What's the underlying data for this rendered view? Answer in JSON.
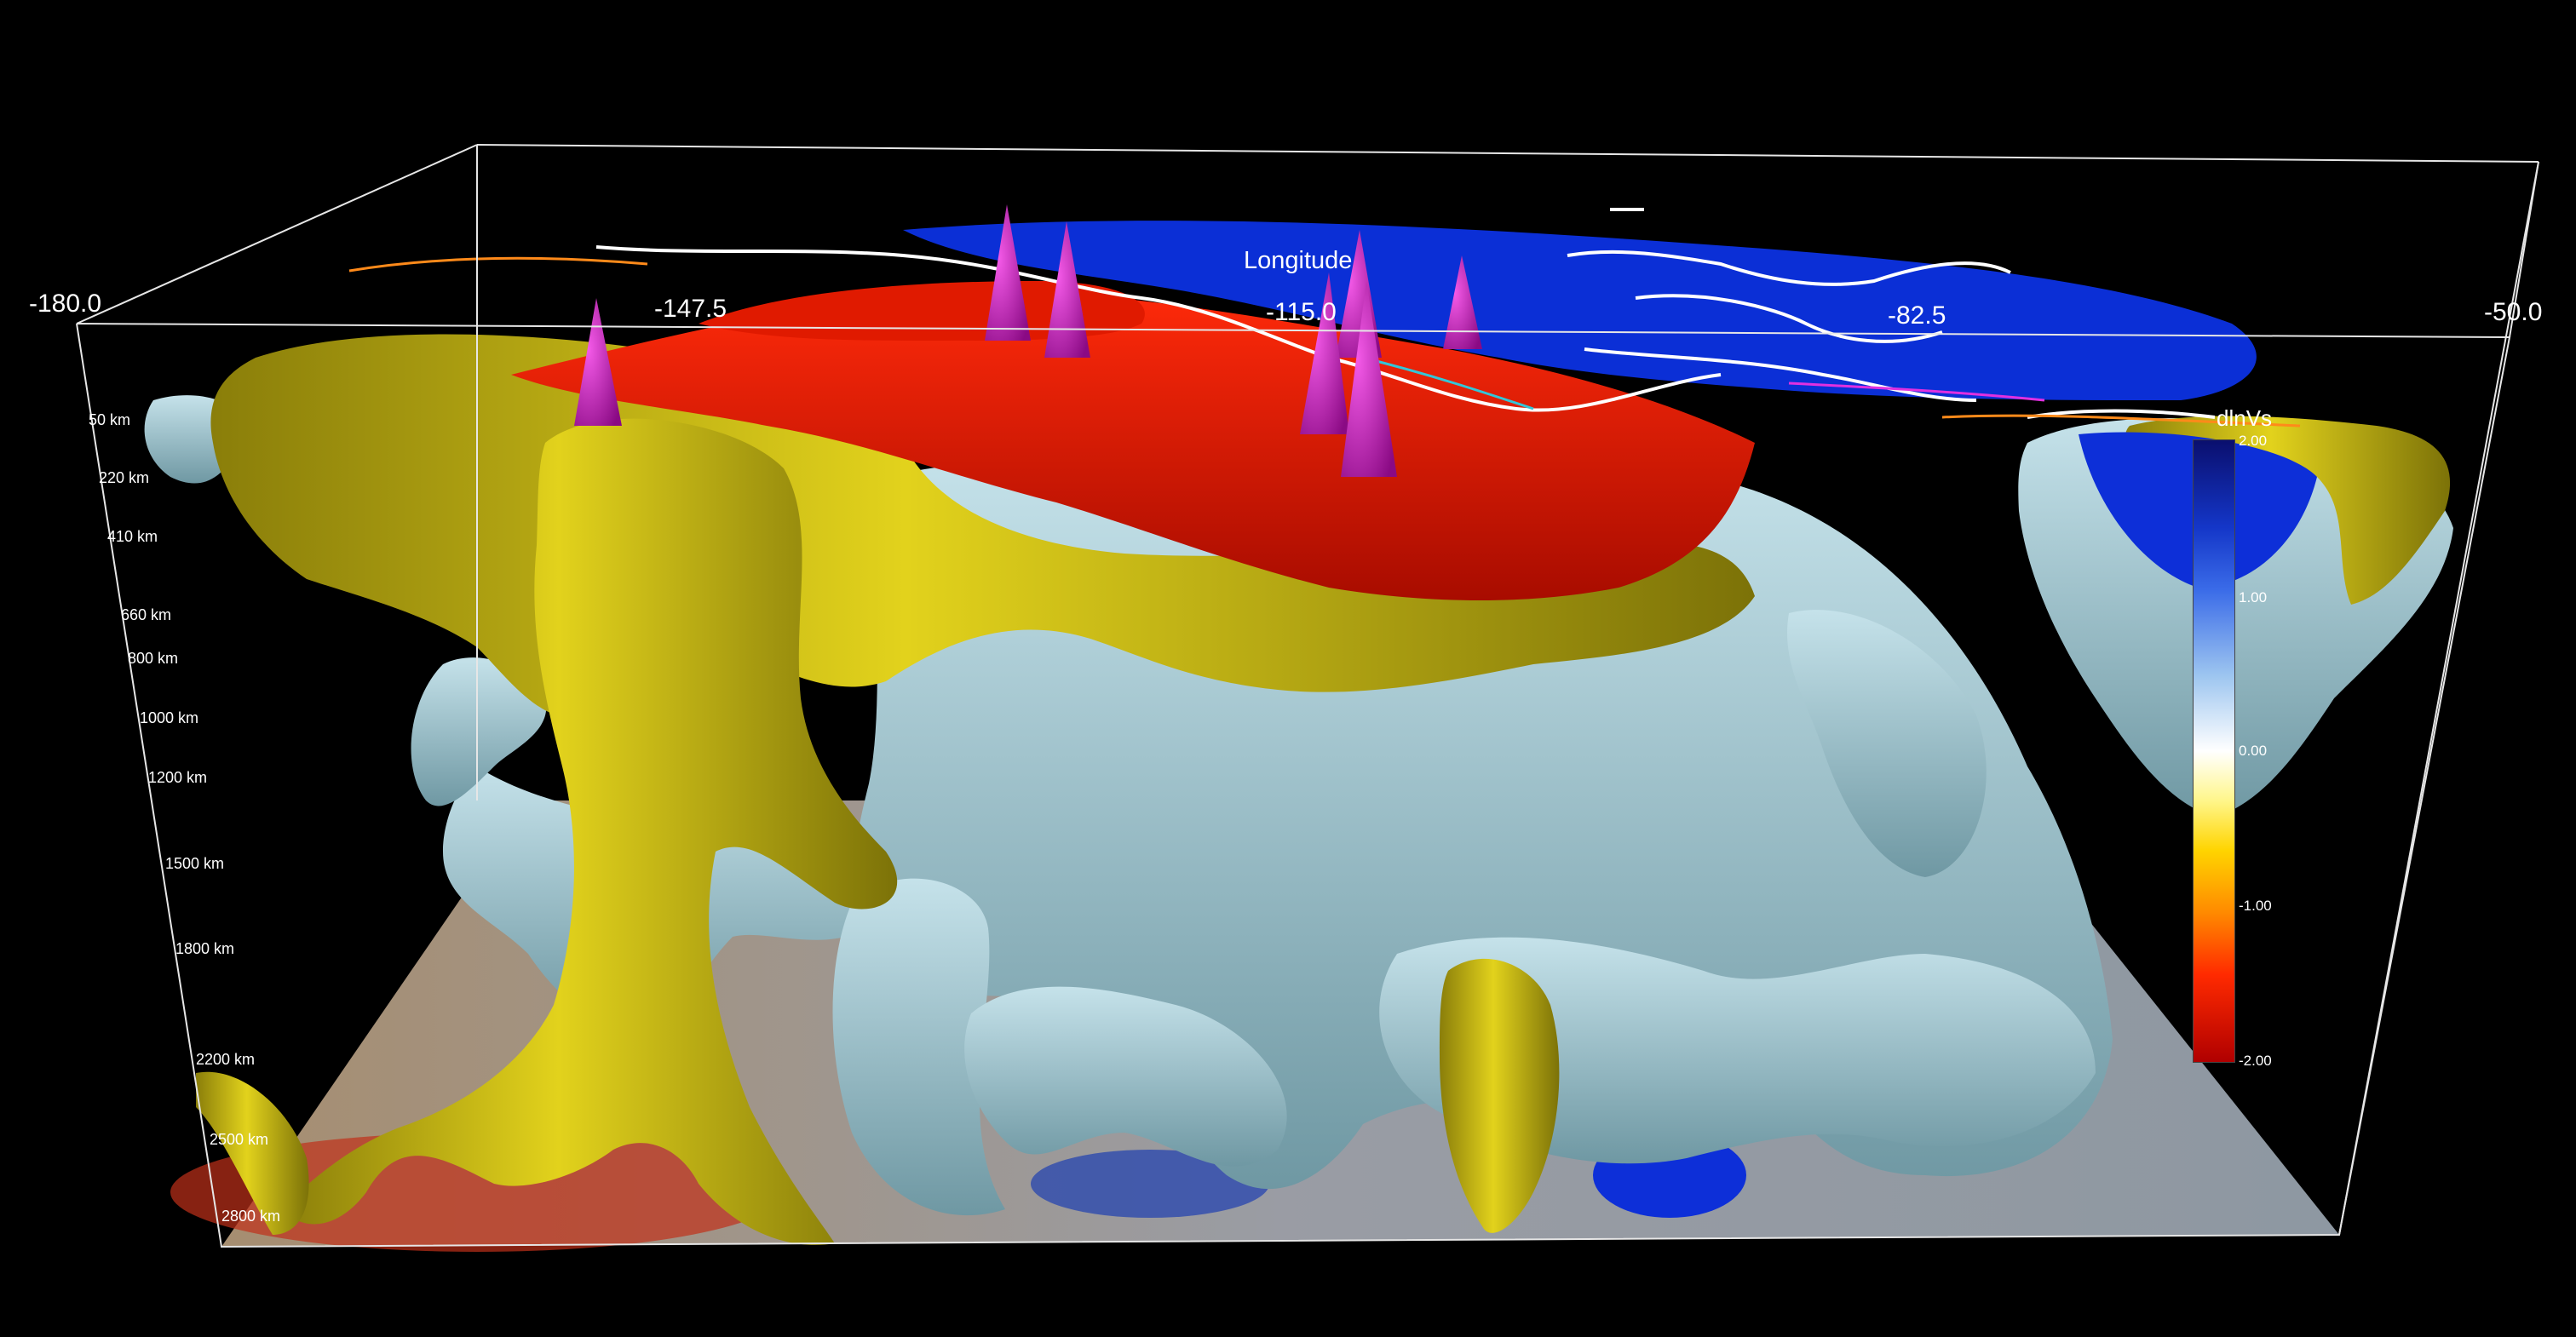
{
  "scene": {
    "longitude_axis": {
      "title": "Longitude",
      "ticks": [
        "-180.0",
        "-147.5",
        "-115.0",
        "-82.5",
        "-50.0"
      ]
    },
    "depth_axis": {
      "ticks": [
        "50 km",
        "220 km",
        "410 km",
        "660 km",
        "800 km",
        "1000 km",
        "1200 km",
        "1500 km",
        "1800 km",
        "2200 km",
        "2500 km",
        "2800 km"
      ]
    },
    "colorbar": {
      "title": "dlnVs",
      "ticks": [
        "2.00",
        "1.00",
        "0.00",
        "-1.00",
        "-2.00"
      ],
      "range": [
        -2.0,
        2.0
      ]
    },
    "colors": {
      "background": "#000000",
      "slow_red": "#e01a00",
      "slow_yellow": "#c9bb10",
      "fast_blue": "#0b2fd6",
      "isosurface_lightblue": "#a8cfd8",
      "volcano_cones": "#c21ab8"
    }
  }
}
